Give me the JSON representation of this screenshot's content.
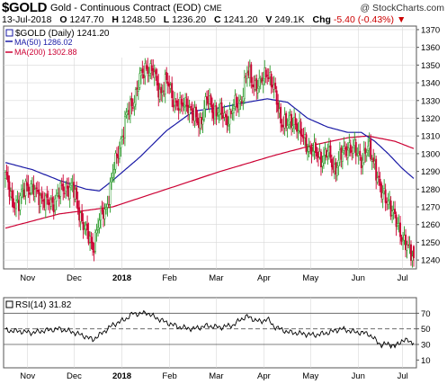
{
  "header": {
    "symbol": "$GOLD",
    "name": "Gold - Continuous Contract (EOD)",
    "exchange": "CME",
    "watermark": "@ StockCharts.com",
    "date": "13-Jul-2018",
    "open_label": "O",
    "open": "1247.70",
    "high_label": "H",
    "high": "1248.50",
    "low_label": "L",
    "low": "1236.20",
    "close_label": "C",
    "close": "1241.20",
    "volume_label": "V",
    "volume": "249.1K",
    "change_label": "Chg",
    "change": "-5.40 (-0.43%)",
    "change_arrow": "▼"
  },
  "colors": {
    "up": "#2a9a2a",
    "down": "#cc0033",
    "ma50": "#1a1aa6",
    "ma200": "#cc0033",
    "rsi": "#000000",
    "rsi_fill": "#000000",
    "grid": "#d8d8d8"
  },
  "chart_data": [
    {
      "type": "candlestick",
      "legend": [
        {
          "marker": "#1a1aa6",
          "label": "$GOLD (Daily) 1241.20"
        },
        {
          "marker": "#1a1aa6",
          "label": "MA(50) 1286.02"
        },
        {
          "marker": "#cc0033",
          "label": "MA(200) 1302.88"
        }
      ],
      "y_ticks": [
        1240,
        1250,
        1260,
        1270,
        1280,
        1290,
        1300,
        1310,
        1320,
        1330,
        1340,
        1350,
        1360,
        1370
      ],
      "ylim": [
        1235,
        1372
      ],
      "x_tick_labels": [
        "Nov",
        "Dec",
        "2018",
        "Feb",
        "Mar",
        "Apr",
        "May",
        "Jun",
        "Jul"
      ],
      "x_tick_bold": [
        false,
        false,
        true,
        false,
        false,
        false,
        false,
        false,
        false
      ],
      "close_anchors": [
        [
          0,
          1286
        ],
        [
          5,
          1275
        ],
        [
          10,
          1270
        ],
        [
          15,
          1284
        ],
        [
          20,
          1278
        ],
        [
          25,
          1278
        ],
        [
          30,
          1271
        ],
        [
          35,
          1273
        ],
        [
          40,
          1277
        ],
        [
          45,
          1282
        ],
        [
          50,
          1280
        ],
        [
          55,
          1268
        ],
        [
          60,
          1255
        ],
        [
          65,
          1248
        ],
        [
          70,
          1262
        ],
        [
          75,
          1270
        ],
        [
          80,
          1288
        ],
        [
          85,
          1305
        ],
        [
          90,
          1320
        ],
        [
          95,
          1330
        ],
        [
          100,
          1341
        ],
        [
          105,
          1350
        ],
        [
          110,
          1345
        ],
        [
          115,
          1335
        ],
        [
          120,
          1340
        ],
        [
          125,
          1332
        ],
        [
          130,
          1325
        ],
        [
          135,
          1330
        ],
        [
          140,
          1320
        ],
        [
          145,
          1318
        ],
        [
          150,
          1330
        ],
        [
          155,
          1325
        ],
        [
          160,
          1322
        ],
        [
          165,
          1320
        ],
        [
          170,
          1325
        ],
        [
          175,
          1330
        ],
        [
          180,
          1345
        ],
        [
          185,
          1340
        ],
        [
          190,
          1338
        ],
        [
          195,
          1348
        ],
        [
          200,
          1335
        ],
        [
          205,
          1320
        ],
        [
          210,
          1315
        ],
        [
          215,
          1320
        ],
        [
          220,
          1310
        ],
        [
          225,
          1305
        ],
        [
          230,
          1300
        ],
        [
          235,
          1298
        ],
        [
          240,
          1300
        ],
        [
          245,
          1292
        ],
        [
          250,
          1298
        ],
        [
          255,
          1305
        ],
        [
          260,
          1301
        ],
        [
          265,
          1298
        ],
        [
          270,
          1302
        ],
        [
          275,
          1295
        ],
        [
          280,
          1276
        ],
        [
          285,
          1275
        ],
        [
          290,
          1262
        ],
        [
          295,
          1255
        ],
        [
          300,
          1245
        ],
        [
          304,
          1241.2
        ]
      ],
      "ma50_anchors": [
        [
          0,
          1295
        ],
        [
          20,
          1291
        ],
        [
          40,
          1285
        ],
        [
          60,
          1280
        ],
        [
          70,
          1279
        ],
        [
          80,
          1285
        ],
        [
          100,
          1298
        ],
        [
          120,
          1313
        ],
        [
          140,
          1324
        ],
        [
          160,
          1326
        ],
        [
          180,
          1329
        ],
        [
          195,
          1331
        ],
        [
          210,
          1329
        ],
        [
          225,
          1320
        ],
        [
          240,
          1315
        ],
        [
          255,
          1312
        ],
        [
          265,
          1312
        ],
        [
          275,
          1307
        ],
        [
          285,
          1300
        ],
        [
          295,
          1292
        ],
        [
          304,
          1286.02
        ]
      ],
      "ma200_anchors": [
        [
          0,
          1258
        ],
        [
          40,
          1266
        ],
        [
          80,
          1270
        ],
        [
          120,
          1280
        ],
        [
          160,
          1290
        ],
        [
          200,
          1299
        ],
        [
          230,
          1305
        ],
        [
          255,
          1309
        ],
        [
          270,
          1310
        ],
        [
          290,
          1307
        ],
        [
          304,
          1302.88
        ]
      ]
    },
    {
      "type": "line",
      "series": [
        {
          "name": "RSI(14) 31.82"
        }
      ],
      "y_ticks": [
        10,
        30,
        50,
        70
      ],
      "ylim": [
        0,
        90
      ],
      "reference_lines": [
        30,
        50,
        70
      ],
      "x_tick_labels": [
        "Nov",
        "Dec",
        "2018",
        "Feb",
        "Mar",
        "Apr",
        "May",
        "Jun",
        "Jul"
      ],
      "rsi_anchors": [
        [
          0,
          48
        ],
        [
          10,
          47
        ],
        [
          20,
          45
        ],
        [
          30,
          48
        ],
        [
          40,
          50
        ],
        [
          50,
          46
        ],
        [
          60,
          40
        ],
        [
          65,
          36
        ],
        [
          70,
          42
        ],
        [
          80,
          55
        ],
        [
          90,
          63
        ],
        [
          95,
          70
        ],
        [
          100,
          69
        ],
        [
          105,
          71
        ],
        [
          110,
          66
        ],
        [
          120,
          58
        ],
        [
          130,
          52
        ],
        [
          140,
          50
        ],
        [
          150,
          54
        ],
        [
          160,
          52
        ],
        [
          170,
          55
        ],
        [
          175,
          62
        ],
        [
          180,
          66
        ],
        [
          185,
          62
        ],
        [
          190,
          59
        ],
        [
          195,
          63
        ],
        [
          200,
          53
        ],
        [
          210,
          46
        ],
        [
          220,
          44
        ],
        [
          230,
          42
        ],
        [
          240,
          45
        ],
        [
          250,
          50
        ],
        [
          260,
          46
        ],
        [
          270,
          44
        ],
        [
          280,
          29
        ],
        [
          285,
          31
        ],
        [
          290,
          27
        ],
        [
          295,
          35
        ],
        [
          300,
          35
        ],
        [
          304,
          31.82
        ]
      ]
    }
  ]
}
